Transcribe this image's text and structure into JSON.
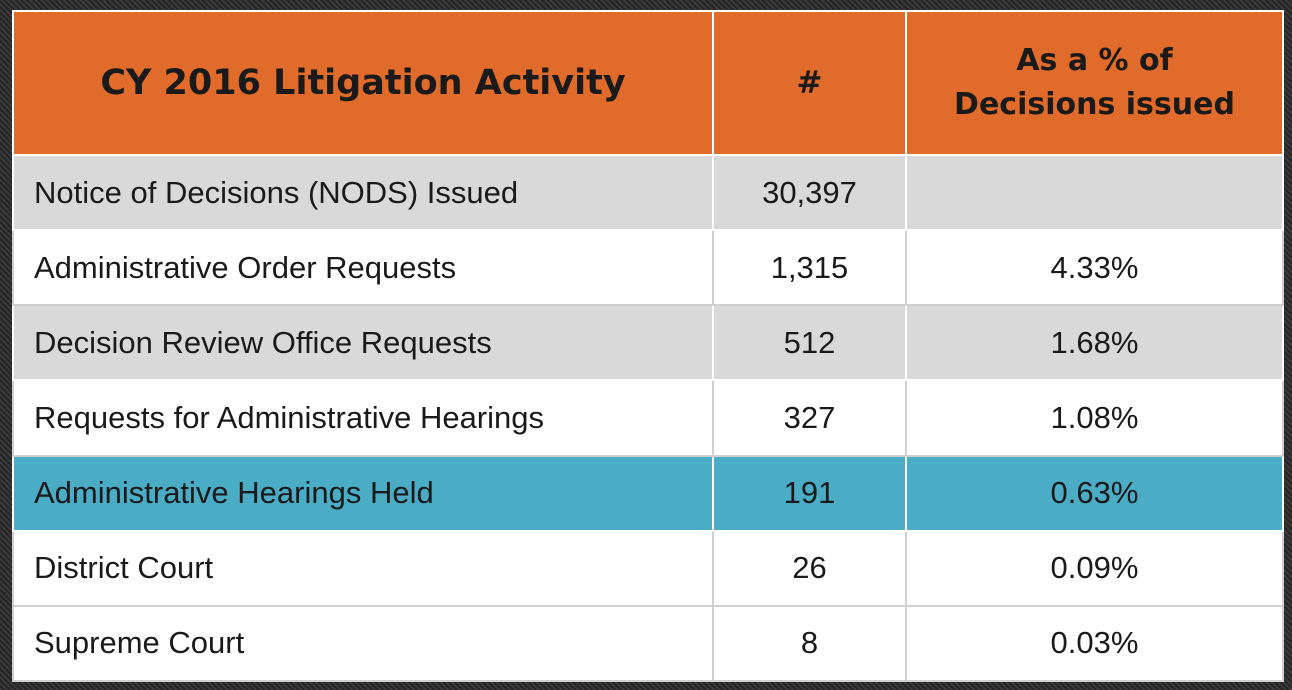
{
  "table": {
    "header": [
      "CY 2016 Litigation Activity",
      "#",
      [
        "As a % of",
        "Decisions issued"
      ]
    ],
    "rows": [
      [
        "Notice of Decisions (NODS) Issued",
        "30,397",
        null
      ],
      [
        "Administrative Order Requests",
        "1,315",
        "4.33%"
      ],
      [
        "Decision Review Office Requests",
        "512",
        "1.68%"
      ],
      [
        "Requests for Administrative Hearings",
        "327",
        "1.08%"
      ],
      [
        "Administrative Hearings Held",
        "191",
        "0.63%"
      ],
      [
        "District Court",
        "26",
        "0.09%"
      ],
      [
        "Supreme Court",
        "8",
        "0.03%"
      ]
    ],
    "highlight_row": 4
  }
}
